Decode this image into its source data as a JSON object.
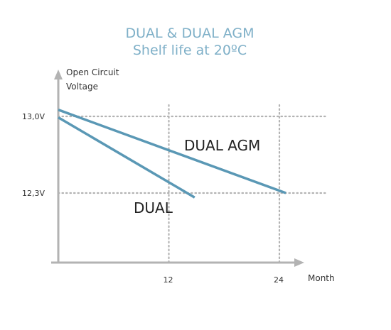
{
  "chart_data": {
    "type": "line",
    "title": "DUAL & DUAL AGM",
    "subtitle": "Shelf life at 20ºC",
    "ylabel_line1": "Open Circuit",
    "ylabel_line2": "Voltage",
    "xlabel": "Month",
    "x_ticks": [
      {
        "value": 12,
        "label": "12"
      },
      {
        "value": 24,
        "label": "24"
      }
    ],
    "y_ticks": [
      {
        "value": 13.0,
        "label": "13,0V"
      },
      {
        "value": 12.3,
        "label": "12,3V"
      }
    ],
    "xlim": [
      0,
      30
    ],
    "ylim": [
      11.65,
      13.5
    ],
    "grid": "dotted at labeled ticks",
    "series": [
      {
        "name": "DUAL AGM",
        "color": "#5a98b5",
        "x": [
          0,
          24.7
        ],
        "y": [
          13.06,
          12.3
        ]
      },
      {
        "name": "DUAL",
        "color": "#5a98b5",
        "x": [
          0,
          14.8
        ],
        "y": [
          12.99,
          12.26
        ]
      }
    ],
    "colors": {
      "title": "#7fb0c8",
      "axis": "#b3b3b3",
      "grid": "#b3b3b3"
    }
  }
}
